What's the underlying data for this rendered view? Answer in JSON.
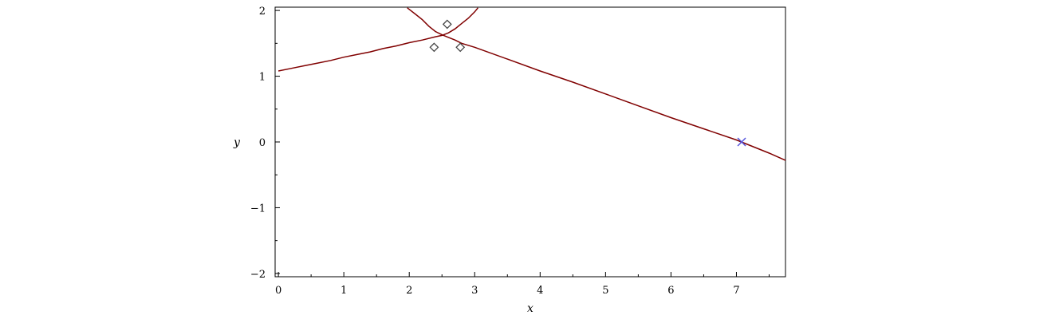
{
  "chart_data": {
    "type": "line",
    "title": "",
    "xlabel": "x",
    "ylabel": "y",
    "xlim": [
      -0.05,
      7.75
    ],
    "ylim": [
      -2.05,
      2.05
    ],
    "x_ticks": [
      0,
      1,
      2,
      3,
      4,
      5,
      6,
      7
    ],
    "x_tick_labels": [
      "0",
      "1",
      "2",
      "3",
      "4",
      "5",
      "6",
      "7"
    ],
    "y_ticks": [
      -2,
      -1,
      0,
      1,
      2
    ],
    "y_tick_labels": [
      "−2",
      "−1",
      "0",
      "1",
      "2"
    ],
    "grid": false,
    "line_color": "#800000",
    "series": [
      {
        "type": "line",
        "x": [
          0,
          0.2,
          0.4,
          0.6,
          0.8,
          1.0,
          1.2,
          1.4,
          1.6,
          1.8,
          2.0,
          2.2,
          2.4,
          2.5,
          2.6,
          2.7,
          2.8,
          2.9,
          3.0,
          3.05
        ],
        "y": [
          1.08,
          1.12,
          1.16,
          1.2,
          1.24,
          1.29,
          1.33,
          1.37,
          1.42,
          1.46,
          1.51,
          1.55,
          1.6,
          1.62,
          1.66,
          1.72,
          1.8,
          1.88,
          1.98,
          2.04
        ]
      },
      {
        "type": "line",
        "x": [
          1.97,
          2.1,
          2.2,
          2.3,
          2.4,
          2.5,
          2.6,
          2.7,
          2.8,
          3.0,
          3.5,
          4.0,
          4.5,
          5.0,
          5.5,
          6.0,
          6.5,
          7.0,
          7.5,
          7.75
        ],
        "y": [
          2.04,
          1.94,
          1.86,
          1.76,
          1.68,
          1.63,
          1.59,
          1.55,
          1.5,
          1.44,
          1.26,
          1.08,
          0.91,
          0.73,
          0.55,
          0.37,
          0.2,
          0.03,
          -0.17,
          -0.28
        ]
      }
    ],
    "markers": [
      {
        "shape": "diamond",
        "x": 2.38,
        "y": 1.44,
        "color": "#444444"
      },
      {
        "shape": "diamond",
        "x": 2.58,
        "y": 1.79,
        "color": "#444444"
      },
      {
        "shape": "diamond",
        "x": 2.78,
        "y": 1.44,
        "color": "#444444"
      },
      {
        "shape": "cross",
        "x": 7.08,
        "y": 0.0,
        "color": "#5555dd"
      }
    ]
  }
}
